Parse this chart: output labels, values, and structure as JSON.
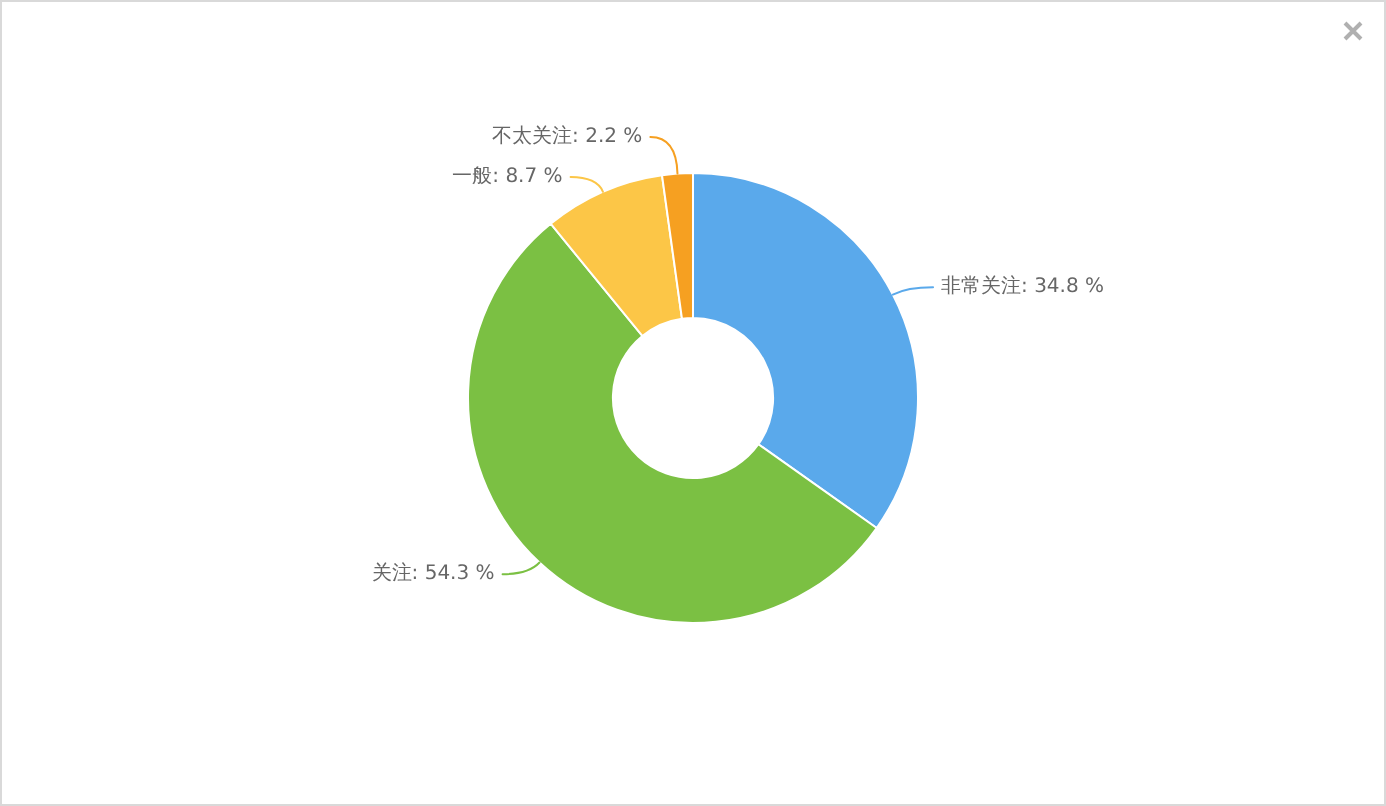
{
  "chart_data": {
    "type": "donut",
    "categories": [
      "非常关注",
      "关注",
      "一般",
      "不太关注"
    ],
    "values": [
      34.8,
      54.3,
      8.7,
      2.2
    ],
    "colors": [
      "#5aa9eb",
      "#7bc043",
      "#fcc647",
      "#f6a021"
    ],
    "value_labels": [
      "34.8 %",
      "54.3 %",
      "8.7 %",
      "2.2 %"
    ]
  }
}
